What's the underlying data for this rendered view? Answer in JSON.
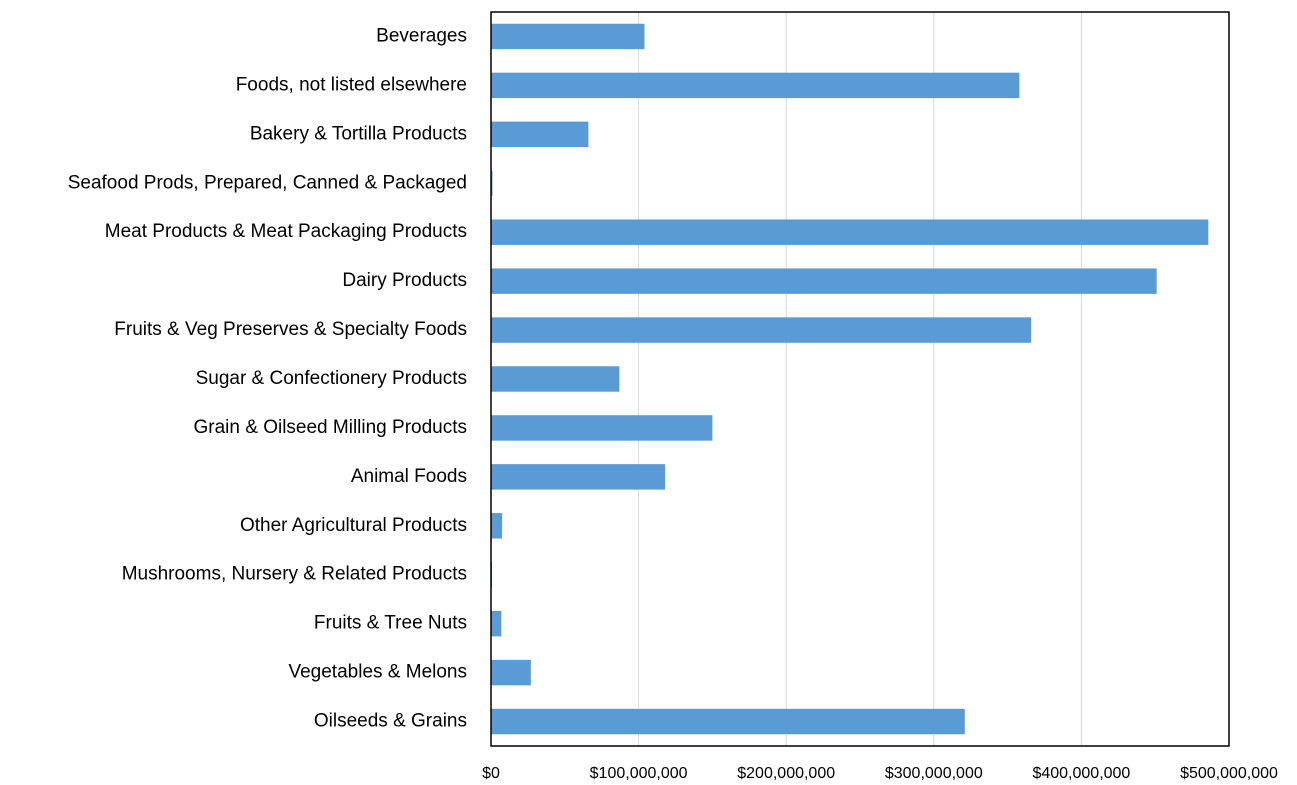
{
  "chart_data": {
    "type": "barh",
    "categories": [
      "Beverages",
      "Foods, not listed elsewhere",
      "Bakery & Tortilla Products",
      "Seafood Prods, Prepared, Canned & Packaged",
      "Meat Products & Meat Packaging Products",
      "Dairy Products",
      "Fruits & Veg Preserves & Specialty Foods",
      "Sugar & Confectionery Products",
      "Grain & Oilseed Milling Products",
      "Animal Foods",
      "Other Agricultural Products",
      "Mushrooms, Nursery & Related Products",
      "Fruits & Tree Nuts",
      "Vegetables & Melons",
      "Oilseeds & Grains"
    ],
    "values": [
      104000000,
      358000000,
      66000000,
      1000000,
      486000000,
      451000000,
      366000000,
      87000000,
      150000000,
      118000000,
      7500000,
      700000,
      7000000,
      27000000,
      321000000
    ],
    "color": "#5b9bd5",
    "xlim": [
      0,
      500000000
    ],
    "xticks": [
      {
        "value": 0,
        "label": "$0"
      },
      {
        "value": 100000000,
        "label": "$100,000,000"
      },
      {
        "value": 200000000,
        "label": "$200,000,000"
      },
      {
        "value": 300000000,
        "label": "$300,000,000"
      },
      {
        "value": 400000000,
        "label": "$400,000,000"
      },
      {
        "value": 500000000,
        "label": "$500,000,000"
      }
    ],
    "grid": true
  }
}
